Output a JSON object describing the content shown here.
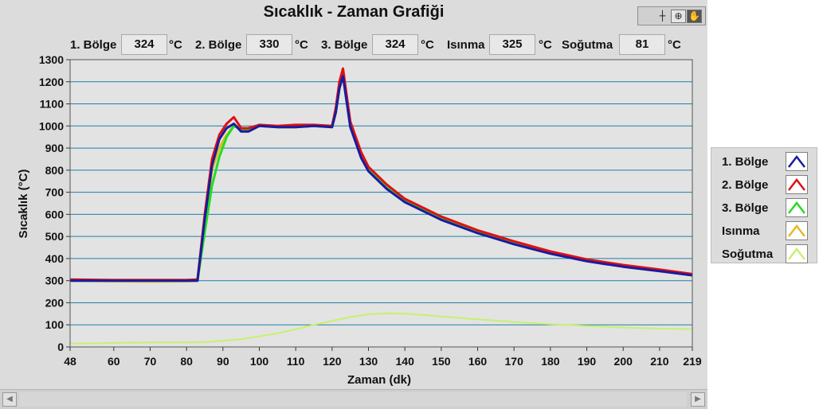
{
  "window": {
    "title": "Sıcaklık - Zaman Grafiği"
  },
  "toolbar": {
    "crosshair": "┼",
    "zoom": "⊕",
    "pan": "✋"
  },
  "readouts": [
    {
      "label": "1. Bölge",
      "value": "324",
      "unit": "°C"
    },
    {
      "label": "2. Bölge",
      "value": "330",
      "unit": "°C"
    },
    {
      "label": "3. Bölge",
      "value": "324",
      "unit": "°C"
    },
    {
      "label": "Isınma",
      "value": "325",
      "unit": "°C"
    },
    {
      "label": "Soğutma",
      "value": "81",
      "unit": "°C"
    }
  ],
  "scroll": {
    "left": "◀",
    "right": "▶"
  },
  "chart_data": {
    "type": "line",
    "title": "",
    "xlabel": "Zaman (dk)",
    "ylabel": "Sıcaklık (°C)",
    "xlim": [
      48,
      219
    ],
    "ylim": [
      0,
      1300
    ],
    "xticks": [
      48,
      60,
      70,
      80,
      90,
      100,
      110,
      120,
      130,
      140,
      150,
      160,
      170,
      180,
      190,
      200,
      210,
      219
    ],
    "yticks": [
      0,
      100,
      200,
      300,
      400,
      500,
      600,
      700,
      800,
      900,
      1000,
      1100,
      1200,
      1300
    ],
    "grid": "horizontal",
    "legend": "right",
    "series": [
      {
        "name": "Isınma",
        "color": "#e8b820",
        "x": [
          48,
          60,
          70,
          80,
          83,
          85,
          87,
          89,
          91,
          93,
          95,
          97,
          100,
          105,
          110,
          115,
          120,
          121,
          122,
          123,
          125,
          128,
          130,
          135,
          140,
          150,
          160,
          170,
          180,
          190,
          200,
          210,
          219
        ],
        "values": [
          300,
          297,
          296,
          297,
          300,
          530,
          800,
          900,
          960,
          1000,
          985,
          985,
          1000,
          995,
          995,
          1000,
          995,
          1060,
          1170,
          1230,
          1000,
          860,
          800,
          720,
          660,
          580,
          520,
          470,
          425,
          390,
          365,
          345,
          325
        ]
      },
      {
        "name": "3. Bölge",
        "color": "#22dd22",
        "x": [
          48,
          60,
          70,
          80,
          83,
          85,
          87,
          89,
          91,
          93,
          95,
          97,
          100,
          105,
          110,
          115,
          120,
          121,
          122,
          123,
          125,
          128,
          130,
          135,
          140,
          150,
          160,
          170,
          180,
          190,
          200,
          210,
          219
        ],
        "values": [
          300,
          300,
          300,
          300,
          300,
          520,
          730,
          860,
          950,
          1000,
          985,
          985,
          1000,
          995,
          995,
          1000,
          995,
          1060,
          1170,
          1230,
          1000,
          860,
          800,
          720,
          660,
          580,
          520,
          470,
          425,
          390,
          365,
          345,
          324
        ]
      },
      {
        "name": "2. Bölge",
        "color": "#e01010",
        "x": [
          48,
          60,
          70,
          80,
          83,
          85,
          87,
          89,
          91,
          93,
          95,
          97,
          100,
          105,
          110,
          115,
          120,
          121,
          122,
          123,
          125,
          128,
          130,
          135,
          140,
          150,
          160,
          170,
          180,
          190,
          200,
          210,
          219
        ],
        "values": [
          305,
          303,
          303,
          303,
          305,
          600,
          850,
          960,
          1010,
          1040,
          990,
          990,
          1005,
          1000,
          1005,
          1005,
          1000,
          1080,
          1200,
          1260,
          1020,
          880,
          815,
          735,
          670,
          590,
          528,
          478,
          432,
          396,
          371,
          350,
          330
        ]
      },
      {
        "name": "1. Bölge",
        "color": "#1a1aa0",
        "x": [
          48,
          60,
          70,
          80,
          83,
          85,
          87,
          89,
          91,
          93,
          95,
          97,
          100,
          105,
          110,
          115,
          120,
          121,
          122,
          123,
          125,
          128,
          130,
          135,
          140,
          150,
          160,
          170,
          180,
          190,
          200,
          210,
          219
        ],
        "values": [
          300,
          300,
          300,
          300,
          300,
          580,
          820,
          940,
          990,
          1010,
          975,
          975,
          1000,
          995,
          995,
          1000,
          995,
          1060,
          1170,
          1225,
          995,
          855,
          795,
          715,
          655,
          575,
          515,
          465,
          422,
          388,
          363,
          343,
          324
        ]
      },
      {
        "name": "Soğutma",
        "color": "#c8f070",
        "x": [
          48,
          60,
          70,
          80,
          85,
          90,
          95,
          100,
          105,
          110,
          115,
          120,
          125,
          130,
          135,
          140,
          145,
          150,
          160,
          170,
          180,
          190,
          200,
          210,
          219
        ],
        "values": [
          15,
          18,
          20,
          20,
          22,
          28,
          35,
          48,
          62,
          80,
          100,
          118,
          135,
          148,
          152,
          150,
          145,
          138,
          125,
          113,
          103,
          95,
          88,
          83,
          81
        ]
      }
    ]
  }
}
